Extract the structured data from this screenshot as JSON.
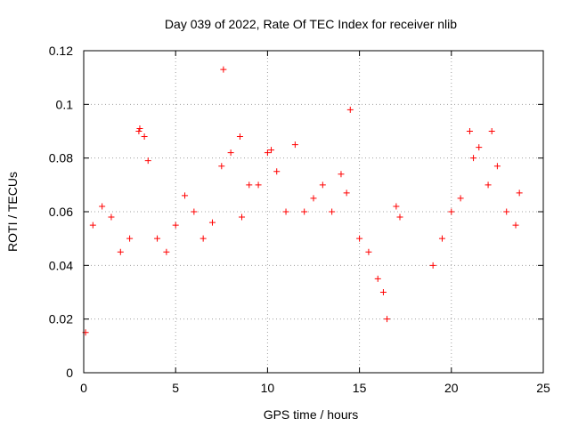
{
  "chart_data": {
    "type": "scatter",
    "title": "Day 039 of 2022, Rate Of TEC Index for receiver nlib",
    "xlabel": "GPS time / hours",
    "ylabel": "ROTI / TECUs",
    "xlim": [
      0,
      25
    ],
    "ylim": [
      0,
      0.12
    ],
    "x_ticks": [
      "0",
      "5",
      "10",
      "15",
      "20",
      "25"
    ],
    "y_ticks": [
      "0",
      "0.02",
      "0.04",
      "0.06",
      "0.08",
      "0.1",
      "0.12"
    ],
    "grid": true,
    "marker": "+",
    "color": "#ff0000",
    "series": [
      {
        "x": [
          0.1,
          0.5,
          1.0,
          1.5,
          2.0,
          2.5,
          3.0,
          3.05,
          3.3,
          3.5,
          4.0,
          4.5,
          5.0,
          5.5,
          6.0,
          6.5,
          7.0,
          7.5,
          7.6,
          8.0,
          8.5,
          8.6,
          9.0,
          9.5,
          10.0,
          10.2,
          10.5,
          11.0,
          11.5,
          12.0,
          12.5,
          13.0,
          13.5,
          14.0,
          14.3,
          14.5,
          15.0,
          15.5,
          16.0,
          16.3,
          16.5,
          17.0,
          17.2,
          19.0,
          19.5,
          20.0,
          20.5,
          21.0,
          21.2,
          21.5,
          22.0,
          22.2,
          22.5,
          23.0,
          23.5,
          23.7
        ],
        "y": [
          0.015,
          0.055,
          0.062,
          0.058,
          0.045,
          0.05,
          0.09,
          0.091,
          0.088,
          0.079,
          0.05,
          0.045,
          0.055,
          0.066,
          0.06,
          0.05,
          0.056,
          0.077,
          0.113,
          0.082,
          0.088,
          0.058,
          0.07,
          0.07,
          0.082,
          0.083,
          0.075,
          0.06,
          0.085,
          0.06,
          0.065,
          0.07,
          0.06,
          0.074,
          0.067,
          0.098,
          0.05,
          0.045,
          0.035,
          0.03,
          0.02,
          0.062,
          0.058,
          0.04,
          0.05,
          0.06,
          0.065,
          0.09,
          0.08,
          0.084,
          0.07,
          0.09,
          0.077,
          0.06,
          0.055,
          0.067
        ]
      }
    ]
  }
}
